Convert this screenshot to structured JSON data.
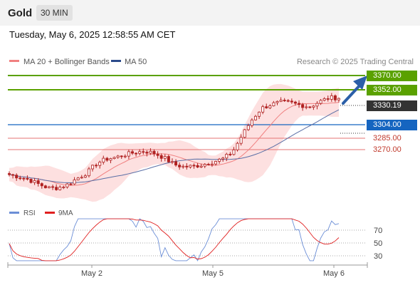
{
  "header": {
    "title": "Gold",
    "timeframe": "30 MIN"
  },
  "datetime": "Tuesday, May 6, 2025 12:58:55 AM CET",
  "legend": {
    "ma20": "MA 20 + Bollinger Bands",
    "ma50": "MA 50",
    "credit": "Research © 2025 Trading Central"
  },
  "levels": [
    {
      "value": "3370.00",
      "kind": "resistance",
      "color": "#5aa100"
    },
    {
      "value": "3352.00",
      "kind": "resistance",
      "color": "#5aa100"
    },
    {
      "value": "3330.19",
      "kind": "last",
      "color": "#333333"
    },
    {
      "value": "3304.00",
      "kind": "pivot",
      "color": "#1565c0"
    },
    {
      "value": "3285.00",
      "kind": "support",
      "color": "#e57373"
    },
    {
      "value": "3270.00",
      "kind": "support",
      "color": "#e57373"
    }
  ],
  "rsi": {
    "label": "RSI",
    "ma_label": "9MA",
    "ticks": [
      "70",
      "50",
      "30"
    ]
  },
  "xaxis": {
    "ticks": [
      "May 2",
      "May 5",
      "May 6"
    ]
  },
  "colors": {
    "up": "#5aa100",
    "pivot": "#1565c0",
    "support": "#e57373",
    "ma20": "#f08080",
    "ma50": "#5a6fa6",
    "band": "#fde0e0",
    "candle": "#b02020",
    "rsi": "#6b8ed6",
    "rsi_ma": "#e02020"
  },
  "chart_data": {
    "type": "candlestick",
    "title": "Gold",
    "interval": "30 MIN",
    "price_axis_labels": [
      "3370.00",
      "3352.00",
      "3330.19",
      "3304.00",
      "3285.00",
      "3270.00"
    ],
    "series": [
      {
        "name": "MA 20 + Bollinger Bands"
      },
      {
        "name": "MA 50"
      }
    ],
    "close_path": [
      3192,
      3188,
      3183,
      3175,
      3168,
      3168,
      3174,
      3185,
      3195,
      3212,
      3220,
      3223,
      3228,
      3232,
      3234,
      3230,
      3222,
      3210,
      3206,
      3207,
      3210,
      3215,
      3220,
      3232,
      3262,
      3290,
      3311,
      3318,
      3322,
      3321,
      3317,
      3314,
      3323,
      3330,
      3330
    ],
    "rsi_range": [
      20,
      80
    ]
  }
}
